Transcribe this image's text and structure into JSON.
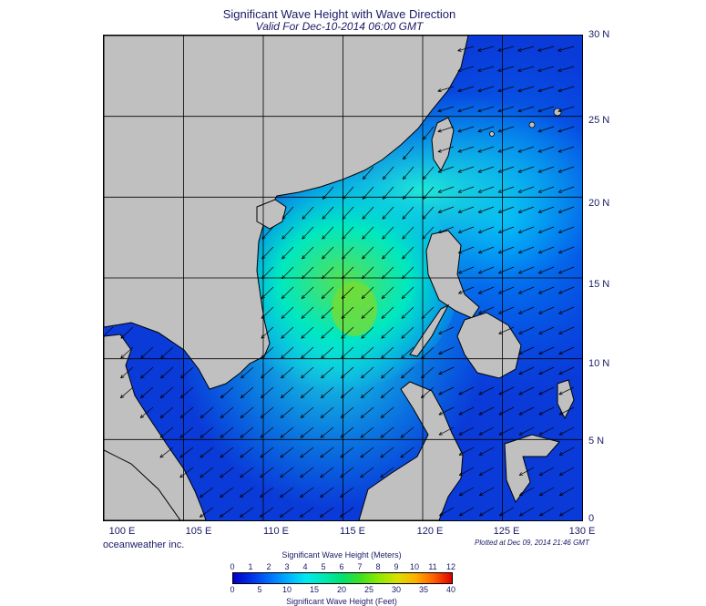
{
  "header": {
    "title": "Significant Wave Height with Wave Direction",
    "subtitle": "Valid For Dec-10-2014 06:00 GMT"
  },
  "map": {
    "lat_range": [
      0,
      30
    ],
    "lon_range": [
      100,
      130
    ],
    "lat_labels": [
      "30 N",
      "25 N",
      "20 N",
      "15 N",
      "10 N",
      "5 N",
      "0"
    ],
    "lon_labels": [
      "100 E",
      "105 E",
      "110 E",
      "115 E",
      "120 E",
      "125 E",
      "130 E"
    ],
    "land_color": "#c0c0c0",
    "grid_color": "#000000",
    "arrow_direction": "toward-southwest"
  },
  "footer": {
    "credit": "oceanweather inc.",
    "plotted": "Plotted at Dec 09, 2014 21:46 GMT"
  },
  "colorbar": {
    "title_meters": "Significant Wave Height (Meters)",
    "title_feet": "Significant Wave Height (Feet)",
    "meters_ticks": [
      "0",
      "1",
      "2",
      "3",
      "4",
      "5",
      "6",
      "7",
      "8",
      "9",
      "10",
      "11",
      "12"
    ],
    "feet_ticks": [
      "0",
      "5",
      "10",
      "15",
      "20",
      "25",
      "30",
      "35",
      "40"
    ],
    "colors": [
      "#0000c8",
      "#0030e8",
      "#0070ff",
      "#00b0ff",
      "#00e8f0",
      "#00e8b0",
      "#00e070",
      "#40e020",
      "#90e800",
      "#d8e000",
      "#ffb000",
      "#ff6000",
      "#e00000"
    ]
  }
}
